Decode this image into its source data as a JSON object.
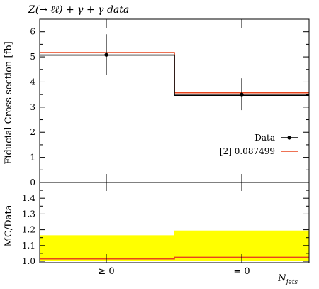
{
  "title": "Z(→ ℓℓ) + γ + γ data",
  "chart_data": [
    {
      "type": "line",
      "panel": "main",
      "ylabel": "Fiducial Cross section [fb]",
      "ylim": [
        0,
        6.5
      ],
      "yticks": [
        0,
        1,
        2,
        3,
        4,
        5,
        6
      ],
      "categories": [
        "≥ 0",
        "= 0"
      ],
      "series": [
        {
          "name": "Data",
          "kind": "points",
          "color": "#000000",
          "values": [
            5.08,
            3.5
          ],
          "err_low": [
            0.8,
            0.62
          ],
          "err_high": [
            0.82,
            0.65
          ]
        },
        {
          "name": "[2] 0.087499",
          "kind": "step",
          "color": "#e8441c",
          "values": [
            5.17,
            3.57
          ]
        },
        {
          "name": "",
          "kind": "step",
          "color": "#000000",
          "values": [
            5.07,
            3.47
          ]
        }
      ],
      "legend_position": "right",
      "grid": false
    },
    {
      "type": "area",
      "panel": "ratio",
      "ylabel": "MC/Data",
      "ylim": [
        1.0,
        1.5
      ],
      "yticks": [
        1.0,
        1.1,
        1.2,
        1.3,
        1.4
      ],
      "categories": [
        "≥ 0",
        "= 0"
      ],
      "xlabel": "N_jets",
      "series": [
        {
          "name": "uncertainty band",
          "kind": "band",
          "color": "#ffff00",
          "low": [
            1.0,
            1.0
          ],
          "high": [
            1.165,
            1.195
          ]
        },
        {
          "name": "ratio",
          "kind": "step",
          "color": "#e8441c",
          "values": [
            1.015,
            1.025
          ]
        }
      ],
      "grid": false
    }
  ],
  "xaxis": {
    "label_main": "N",
    "label_sub": "jets",
    "ticklabels": [
      "≥ 0",
      "= 0"
    ]
  }
}
